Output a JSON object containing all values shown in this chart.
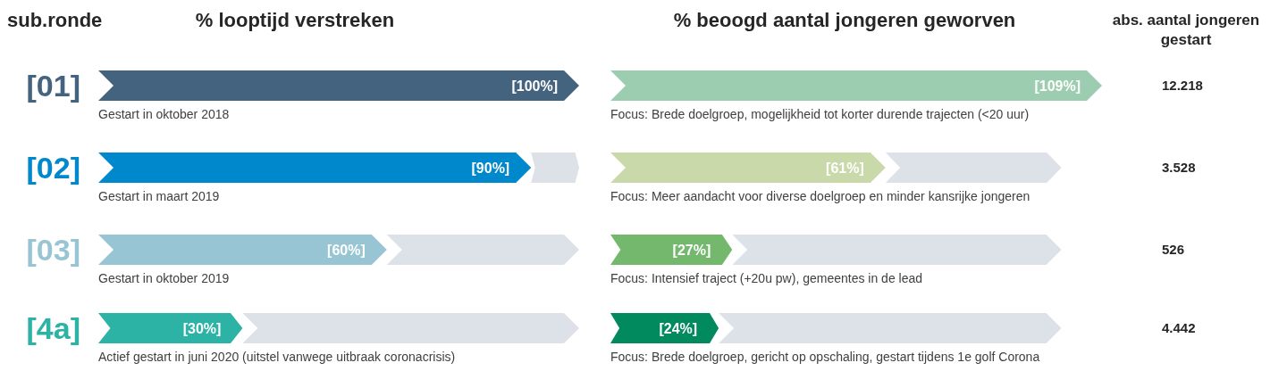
{
  "chart_data": [
    {
      "type": "bar",
      "orientation": "horizontal",
      "stacked": true,
      "title": "% looptijd verstreken",
      "ylabel": "sub.ronde",
      "tick_labels": "y",
      "categories": [
        "[01]",
        "[02]",
        "[03]",
        "[4a]"
      ],
      "series": [
        {
          "colors": [
            "#44637f",
            "#0088cc",
            "#98c5d4",
            "#2cb3a6"
          ],
          "values": [
            100,
            90,
            60,
            30
          ],
          "value_labels": [
            "[100%]",
            "[90%]",
            "[60%]",
            "[30%]"
          ]
        },
        {
          "color": "#dde1e8",
          "values": [
            0,
            10,
            40,
            70
          ]
        }
      ],
      "annotations": [
        "Gestart in oktober 2018",
        "Gestart in maart 2019",
        "Gestart in oktober 2019",
        "Actief gestart in juni 2020 (uitstel vanwege uitbraak coronacrisis)"
      ]
    },
    {
      "type": "bar",
      "orientation": "horizontal",
      "stacked": true,
      "title": "% beoogd aantal jongeren geworven",
      "tick_labels": false,
      "categories": [
        null,
        null,
        null,
        null
      ],
      "series": [
        {
          "colors": [
            "#9dcdb0",
            "#c9d9a9",
            "#74b86e",
            "#008a5e"
          ],
          "values": [
            109,
            61,
            27,
            24
          ],
          "value_labels": [
            "[109%]",
            "[61%]",
            "[27%]",
            "[24%]"
          ]
        },
        {
          "color": "#dde1e8",
          "values": [
            0,
            39,
            73,
            76
          ]
        }
      ],
      "annotations": [
        "Focus: Brede doelgroep, mogelijkheid tot korter durende trajecten (<20 uur)",
        "Focus: Meer aandacht voor diverse doelgroep en minder kansrijke jongeren",
        "Focus: Intensief traject (+20u pw), gemeentes in de lead",
        "Focus: Brede doelgroep, gericht op opschaling, gestart tijdens 1e golf Corona"
      ]
    },
    {
      "type": "other",
      "title": "abs. aantal jongeren gestart",
      "annotations": [
        "12.218",
        "3.528",
        "526",
        "4.442"
      ]
    }
  ]
}
